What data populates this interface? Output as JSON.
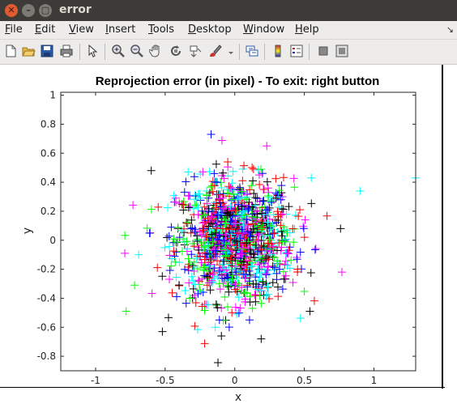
{
  "window": {
    "title": "error"
  },
  "menu": [
    "File",
    "Edit",
    "View",
    "Insert",
    "Tools",
    "Desktop",
    "Window",
    "Help"
  ],
  "menu_underline": [
    "F",
    "E",
    "V",
    "I",
    "T",
    "D",
    "W",
    "H"
  ],
  "toolbar_icons": [
    "new-figure-icon",
    "open-file-icon",
    "save-icon",
    "print-icon",
    "pointer-icon",
    "zoom-in-icon",
    "zoom-out-icon",
    "pan-icon",
    "rotate-icon",
    "data-cursor-icon",
    "brush-icon",
    "link-icon",
    "colorbar-icon",
    "legend-icon",
    "hide-tools-icon",
    "show-tools-icon"
  ],
  "plot": {
    "title": "Reprojection error (in pixel) - To exit: right button",
    "xlabel": "x",
    "ylabel": "y",
    "xticks": [
      "-1",
      "-0.5",
      "0",
      "0.5",
      "1"
    ],
    "yticks": [
      "1",
      "0.8",
      "0.6",
      "0.4",
      "0.2",
      "0",
      "-0.2",
      "-0.4",
      "-0.6",
      "-0.8"
    ]
  },
  "chart_data": {
    "type": "scatter",
    "title": "Reprojection error (in pixel) - To exit: right button",
    "xlabel": "x",
    "ylabel": "y",
    "xlim": [
      -1.25,
      1.3
    ],
    "ylim": [
      -0.9,
      1.02
    ],
    "marker": "+",
    "grid": false,
    "colors": [
      "#000000",
      "#ff00ff",
      "#00ffff",
      "#00ff00",
      "#ff0000",
      "#0000ff"
    ],
    "notable_points": [
      {
        "x": -1.27,
        "y": 0.41,
        "color": "#ff00ff"
      },
      {
        "x": 1.3,
        "y": 0.43,
        "color": "#00ffff"
      },
      {
        "x": 0.9,
        "y": 0.34,
        "color": "#00ffff"
      },
      {
        "x": -0.17,
        "y": 0.73,
        "color": "#0000ff"
      },
      {
        "x": 0.23,
        "y": 0.65,
        "color": "#ff00ff"
      },
      {
        "x": 0.19,
        "y": -0.68,
        "color": "#000000"
      },
      {
        "x": -0.78,
        "y": -0.49,
        "color": "#00ff00"
      },
      {
        "x": -0.52,
        "y": -0.63,
        "color": "#000000"
      },
      {
        "x": -0.14,
        "y": -0.6,
        "color": "#00ffff"
      },
      {
        "x": 0.77,
        "y": -0.22,
        "color": "#ff00ff"
      },
      {
        "x": 0.76,
        "y": 0.08,
        "color": "#000000"
      },
      {
        "x": -0.79,
        "y": -0.09,
        "color": "#ff00ff"
      },
      {
        "x": -0.69,
        "y": -0.1,
        "color": "#00ffff"
      },
      {
        "x": 0.54,
        "y": -0.49,
        "color": "#000000"
      },
      {
        "x": -0.05,
        "y": 0.54,
        "color": "#ff0000"
      },
      {
        "x": 0.24,
        "y": 0.36,
        "color": "#ff00ff"
      },
      {
        "x": 0.55,
        "y": 0.43,
        "color": "#00ffff"
      },
      {
        "x": -0.72,
        "y": -0.31,
        "color": "#00ff00"
      },
      {
        "x": -0.6,
        "y": 0.48,
        "color": "#000000"
      },
      {
        "x": 0.0,
        "y": 0.0,
        "color": "#000000"
      }
    ],
    "cluster": {
      "center": [
        0.0,
        0.0
      ],
      "spread_std": [
        0.21,
        0.21
      ],
      "approx_count": 1200
    }
  }
}
